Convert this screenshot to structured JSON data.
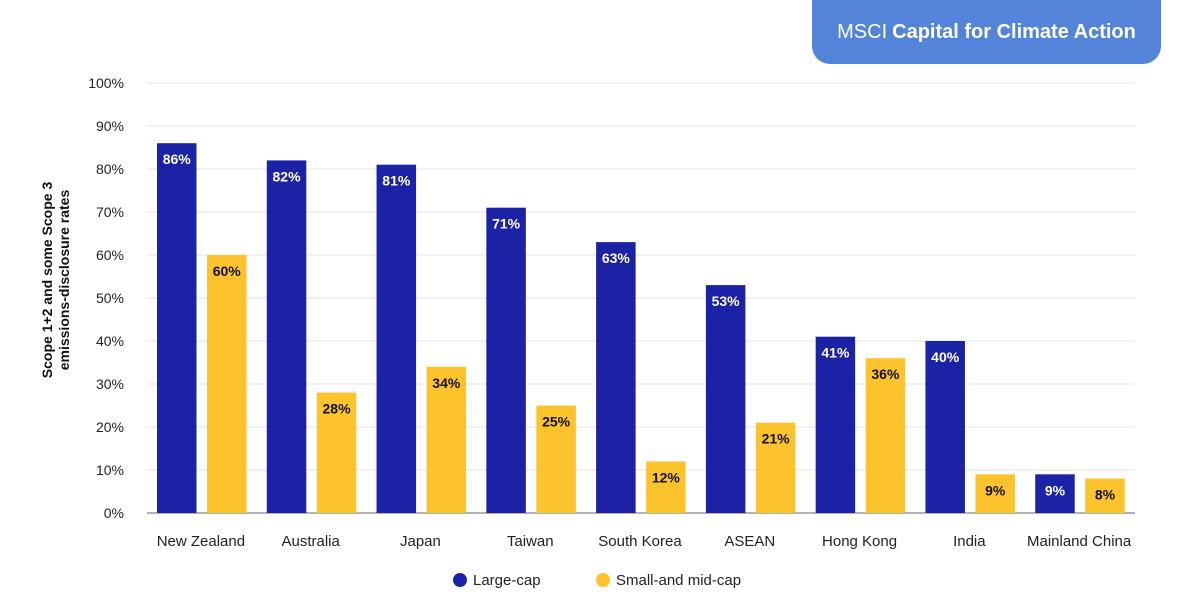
{
  "badge": {
    "brand": "MSCI",
    "title": "Capital for Climate Action"
  },
  "colors": {
    "large": "#1b22a6",
    "small": "#fcc32c",
    "badge": "#5384d9"
  },
  "chart_data": {
    "type": "bar",
    "ylabel_lines": [
      "Scope 1+2 and some Scope 3",
      "emissions-disclosure rates"
    ],
    "ylim": [
      0,
      100
    ],
    "yticks": [
      "0%",
      "10%",
      "20%",
      "30%",
      "40%",
      "50%",
      "60%",
      "70%",
      "80%",
      "90%",
      "100%"
    ],
    "grid": true,
    "legend_position": "bottom",
    "categories": [
      "New Zealand",
      "Australia",
      "Japan",
      "Taiwan",
      "South Korea",
      "ASEAN",
      "Hong Kong",
      "India",
      "Mainland China"
    ],
    "series": [
      {
        "name": "Large-cap",
        "values": [
          86,
          82,
          81,
          71,
          63,
          53,
          41,
          40,
          9
        ]
      },
      {
        "name": "Small-and mid-cap",
        "values": [
          60,
          28,
          34,
          25,
          12,
          21,
          36,
          9,
          8
        ]
      }
    ]
  }
}
